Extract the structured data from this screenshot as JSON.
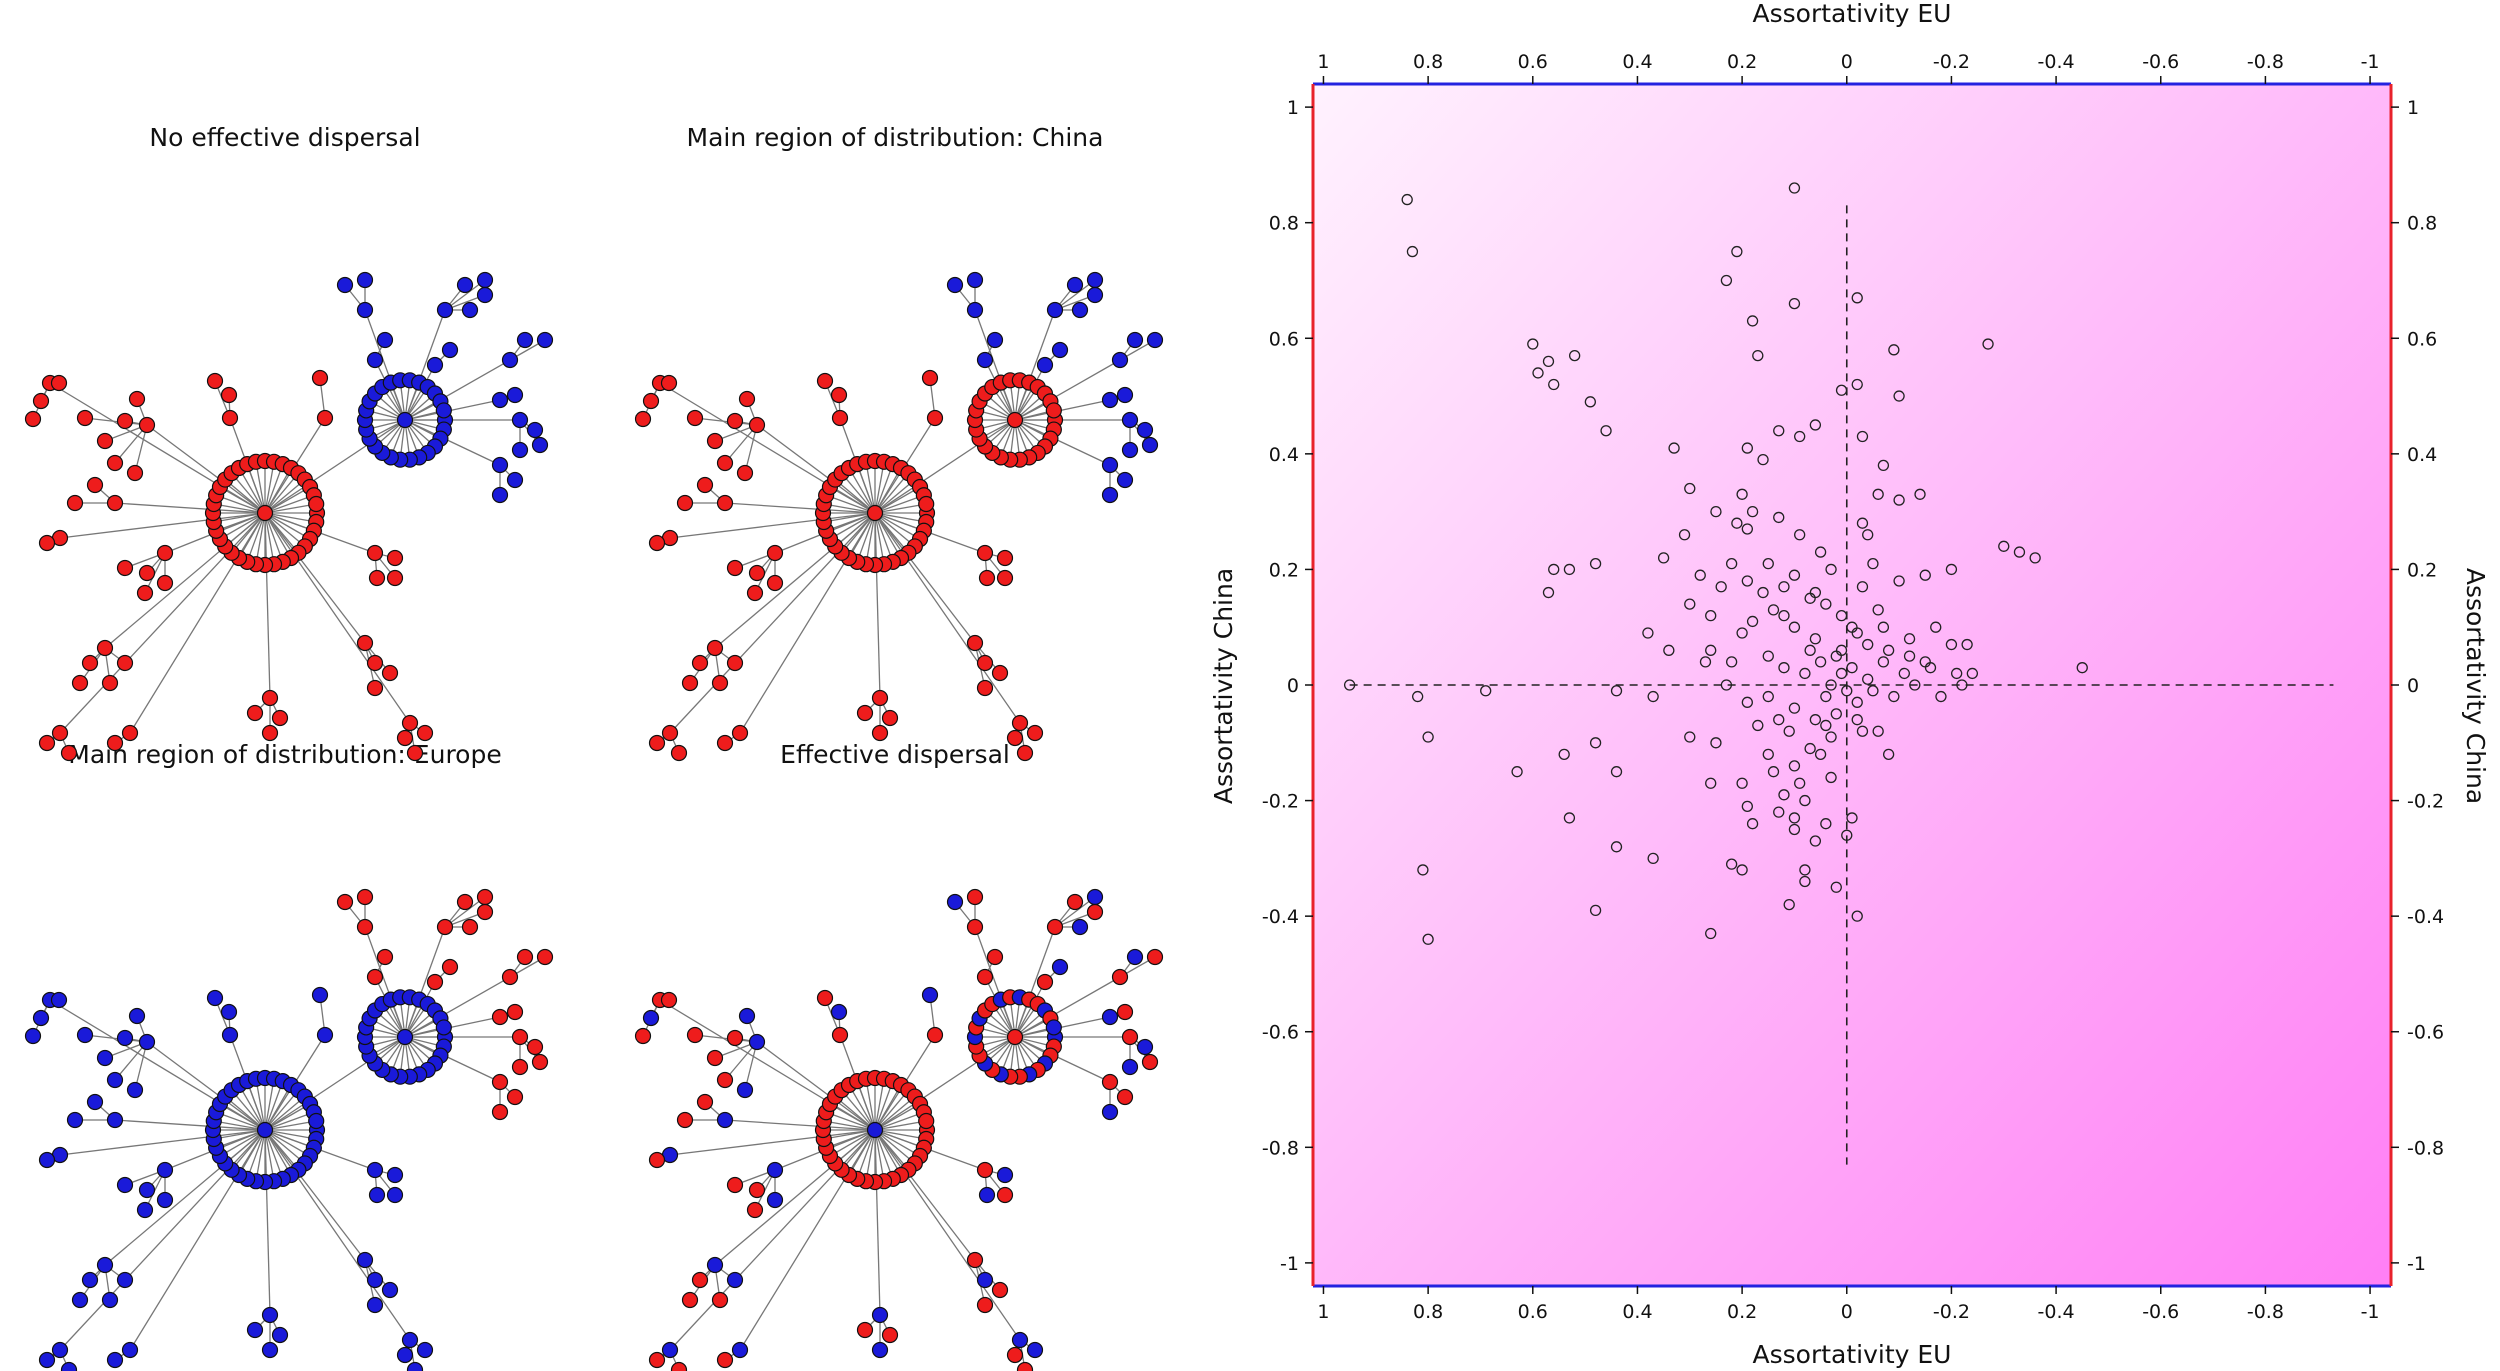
{
  "colors": {
    "red": "#ee1c1c",
    "blue": "#1a1ad9",
    "edge": "#777777",
    "node_stroke": "#111111",
    "bg_light": "#fff2fe",
    "bg_dark": "#ff7ff5",
    "frame_red": "#e8222b",
    "frame_blue": "#2323e0"
  },
  "networks": [
    {
      "title": "No effective dispersal",
      "hub_a": "red",
      "ring_a": "red",
      "leaves_a": "red",
      "hub_b": "blue",
      "ring_b": "blue",
      "leaves_b": "blue"
    },
    {
      "title": "Main region of distribution: China",
      "hub_a": "red",
      "ring_a": "red",
      "leaves_a": "red",
      "hub_b": "red",
      "ring_b": "red",
      "leaves_b": "blue"
    },
    {
      "title": "Main region of distribution: Europe",
      "hub_a": "blue",
      "ring_a": "blue",
      "leaves_a": "blue",
      "hub_b": "blue",
      "ring_b": "blue",
      "leaves_b": "red"
    },
    {
      "title": "Effective dispersal",
      "hub_a": "blue",
      "ring_a": "red",
      "leaves_a": "mixed",
      "hub_b": "red",
      "ring_b": "mixed",
      "leaves_b": "mixed"
    }
  ],
  "chart_data": {
    "type": "scatter",
    "xlabel_top": "Assortativity EU",
    "xlabel_bottom": "Assortativity EU",
    "ylabel_left": "Assortativity China",
    "ylabel_right": "Assortativity China",
    "xlim": [
      1.02,
      -1.04
    ],
    "ylim": [
      -1.04,
      1.04
    ],
    "xticks": [
      1,
      0.8,
      0.6,
      0.4,
      0.2,
      0,
      -0.2,
      -0.4,
      -0.6,
      -0.8,
      -1
    ],
    "xtick_labels": [
      "1",
      "0.8",
      "0.6",
      "0.4",
      "0.2",
      "0",
      "-0.2",
      "-0.4",
      "-0.6",
      "-0.8",
      "-1"
    ],
    "yticks": [
      1,
      0.8,
      0.6,
      0.4,
      0.2,
      0,
      -0.2,
      -0.4,
      -0.6,
      -0.8,
      -1
    ],
    "ytick_labels": [
      "1",
      "0.8",
      "0.6",
      "0.4",
      "0.2",
      "0",
      "-0.2",
      "-0.4",
      "-0.6",
      "-0.8",
      "-1"
    ],
    "reference_lines": {
      "horizontal": {
        "y": 0,
        "x_from": 0.95,
        "x_to": -0.93
      },
      "vertical": {
        "x": 0,
        "y_from": 0.83,
        "y_to": -0.83
      }
    },
    "points": [
      [
        0.84,
        0.84
      ],
      [
        0.83,
        0.75
      ],
      [
        0.1,
        0.86
      ],
      [
        0.21,
        0.75
      ],
      [
        0.23,
        0.7
      ],
      [
        0.1,
        0.66
      ],
      [
        -0.02,
        0.67
      ],
      [
        0.6,
        0.59
      ],
      [
        0.57,
        0.56
      ],
      [
        0.59,
        0.54
      ],
      [
        0.52,
        0.57
      ],
      [
        0.49,
        0.49
      ],
      [
        0.46,
        0.44
      ],
      [
        0.56,
        0.52
      ],
      [
        -0.27,
        0.59
      ],
      [
        0.18,
        0.63
      ],
      [
        0.17,
        0.57
      ],
      [
        -0.09,
        0.58
      ],
      [
        0.01,
        0.51
      ],
      [
        -0.02,
        0.52
      ],
      [
        -0.1,
        0.5
      ],
      [
        0.13,
        0.44
      ],
      [
        0.09,
        0.43
      ],
      [
        0.06,
        0.45
      ],
      [
        -0.03,
        0.43
      ],
      [
        0.16,
        0.39
      ],
      [
        0.19,
        0.41
      ],
      [
        -0.07,
        0.38
      ],
      [
        0.33,
        0.41
      ],
      [
        0.25,
        0.3
      ],
      [
        0.2,
        0.33
      ],
      [
        0.18,
        0.3
      ],
      [
        -0.06,
        0.33
      ],
      [
        -0.03,
        0.28
      ],
      [
        -0.1,
        0.32
      ],
      [
        0.3,
        0.34
      ],
      [
        0.19,
        0.27
      ],
      [
        0.21,
        0.28
      ],
      [
        0.13,
        0.29
      ],
      [
        0.09,
        0.26
      ],
      [
        -0.04,
        0.26
      ],
      [
        -0.14,
        0.33
      ],
      [
        0.56,
        0.2
      ],
      [
        0.53,
        0.2
      ],
      [
        0.48,
        0.21
      ],
      [
        0.57,
        0.16
      ],
      [
        0.35,
        0.22
      ],
      [
        0.31,
        0.26
      ],
      [
        0.28,
        0.19
      ],
      [
        0.22,
        0.21
      ],
      [
        0.19,
        0.18
      ],
      [
        0.15,
        0.21
      ],
      [
        0.12,
        0.17
      ],
      [
        0.07,
        0.15
      ],
      [
        0.05,
        0.23
      ],
      [
        0.03,
        0.2
      ],
      [
        -0.03,
        0.17
      ],
      [
        -0.06,
        0.13
      ],
      [
        -0.1,
        0.18
      ],
      [
        -0.15,
        0.19
      ],
      [
        -0.2,
        0.2
      ],
      [
        -0.3,
        0.24
      ],
      [
        -0.33,
        0.23
      ],
      [
        -0.36,
        0.22
      ],
      [
        0.3,
        0.14
      ],
      [
        0.26,
        0.12
      ],
      [
        0.24,
        0.17
      ],
      [
        0.18,
        0.11
      ],
      [
        0.14,
        0.13
      ],
      [
        0.1,
        0.1
      ],
      [
        0.06,
        0.08
      ],
      [
        0.01,
        0.12
      ],
      [
        0.02,
        0.05
      ],
      [
        -0.02,
        0.09
      ],
      [
        -0.07,
        0.1
      ],
      [
        -0.12,
        0.08
      ],
      [
        -0.17,
        0.1
      ],
      [
        -0.2,
        0.07
      ],
      [
        -0.15,
        0.04
      ],
      [
        -0.23,
        0.07
      ],
      [
        0.38,
        0.09
      ],
      [
        0.34,
        0.06
      ],
      [
        0.27,
        0.04
      ],
      [
        0.22,
        0.04
      ],
      [
        0.15,
        0.05
      ],
      [
        0.12,
        0.03
      ],
      [
        0.08,
        0.02
      ],
      [
        0.05,
        0.04
      ],
      [
        0.01,
        0.02
      ],
      [
        -0.01,
        0.03
      ],
      [
        -0.04,
        0.01
      ],
      [
        -0.07,
        0.04
      ],
      [
        -0.11,
        0.02
      ],
      [
        -0.16,
        0.03
      ],
      [
        -0.21,
        0.02
      ],
      [
        -0.24,
        0.02
      ],
      [
        -0.45,
        0.03
      ],
      [
        0.95,
        0.0
      ],
      [
        0.69,
        -0.01
      ],
      [
        0.82,
        -0.02
      ],
      [
        0.44,
        -0.01
      ],
      [
        0.37,
        -0.02
      ],
      [
        0.23,
        0.0
      ],
      [
        0.19,
        -0.03
      ],
      [
        0.15,
        -0.02
      ],
      [
        0.1,
        -0.04
      ],
      [
        0.04,
        -0.02
      ],
      [
        0.0,
        -0.01
      ],
      [
        -0.02,
        -0.03
      ],
      [
        -0.05,
        -0.01
      ],
      [
        -0.09,
        -0.02
      ],
      [
        -0.13,
        0.0
      ],
      [
        -0.18,
        -0.02
      ],
      [
        -0.22,
        0.0
      ],
      [
        0.8,
        -0.09
      ],
      [
        0.48,
        -0.1
      ],
      [
        0.3,
        -0.09
      ],
      [
        0.25,
        -0.1
      ],
      [
        0.17,
        -0.07
      ],
      [
        0.11,
        -0.08
      ],
      [
        0.06,
        -0.06
      ],
      [
        0.02,
        -0.05
      ],
      [
        -0.02,
        -0.06
      ],
      [
        -0.06,
        -0.08
      ],
      [
        -0.08,
        -0.12
      ],
      [
        0.44,
        -0.15
      ],
      [
        0.2,
        -0.17
      ],
      [
        0.14,
        -0.15
      ],
      [
        0.1,
        -0.14
      ],
      [
        0.05,
        -0.12
      ],
      [
        0.03,
        -0.16
      ],
      [
        0.63,
        -0.15
      ],
      [
        0.54,
        -0.12
      ],
      [
        0.26,
        -0.17
      ],
      [
        0.19,
        -0.21
      ],
      [
        0.08,
        -0.2
      ],
      [
        0.1,
        -0.23
      ],
      [
        0.53,
        -0.23
      ],
      [
        0.18,
        -0.24
      ],
      [
        0.1,
        -0.25
      ],
      [
        0.06,
        -0.27
      ],
      [
        -0.01,
        -0.23
      ],
      [
        0.04,
        -0.24
      ],
      [
        0.0,
        -0.26
      ],
      [
        0.44,
        -0.28
      ],
      [
        0.37,
        -0.3
      ],
      [
        0.22,
        -0.31
      ],
      [
        0.2,
        -0.32
      ],
      [
        0.08,
        -0.32
      ],
      [
        0.81,
        -0.32
      ],
      [
        0.48,
        -0.39
      ],
      [
        0.26,
        -0.43
      ],
      [
        0.11,
        -0.38
      ],
      [
        0.02,
        -0.35
      ],
      [
        -0.02,
        -0.4
      ],
      [
        0.8,
        -0.44
      ],
      [
        0.08,
        -0.34
      ],
      [
        0.12,
        -0.19
      ],
      [
        0.03,
        -0.09
      ],
      [
        0.13,
        -0.06
      ],
      [
        0.09,
        -0.17
      ],
      [
        0.15,
        -0.12
      ],
      [
        0.07,
        0.06
      ],
      [
        0.04,
        0.14
      ],
      [
        0.12,
        0.12
      ],
      [
        -0.04,
        0.07
      ],
      [
        -0.01,
        0.1
      ],
      [
        0.1,
        0.19
      ],
      [
        -0.05,
        0.21
      ],
      [
        0.06,
        0.16
      ],
      [
        0.16,
        0.16
      ],
      [
        0.2,
        0.09
      ],
      [
        -0.08,
        0.06
      ],
      [
        0.01,
        0.06
      ],
      [
        0.03,
        0.0
      ],
      [
        -0.03,
        -0.08
      ],
      [
        0.07,
        -0.11
      ],
      [
        0.13,
        -0.22
      ],
      [
        0.04,
        -0.07
      ],
      [
        -0.12,
        0.05
      ],
      [
        0.26,
        0.06
      ]
    ]
  }
}
